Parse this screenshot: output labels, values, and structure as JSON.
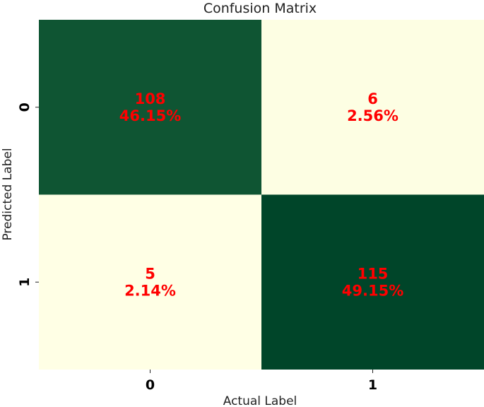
{
  "chart_data": {
    "type": "heatmap",
    "title": "Confusion Matrix",
    "xlabel": "Actual Label",
    "ylabel": "Predicted Label",
    "x_categories": [
      "0",
      "1"
    ],
    "y_categories": [
      "0",
      "1"
    ],
    "values": [
      [
        108,
        6
      ],
      [
        5,
        115
      ]
    ],
    "percentages": [
      [
        "46.15%",
        "2.56%"
      ],
      [
        "2.14%",
        "49.15%"
      ]
    ],
    "cell_labels": [
      [
        "108",
        "6"
      ],
      [
        "5",
        "115"
      ]
    ],
    "colormap": {
      "low": "#ffffe5",
      "mid": "#78c679",
      "high": "#004529"
    },
    "annotation_color": "#ff0000",
    "colorbar": false
  }
}
